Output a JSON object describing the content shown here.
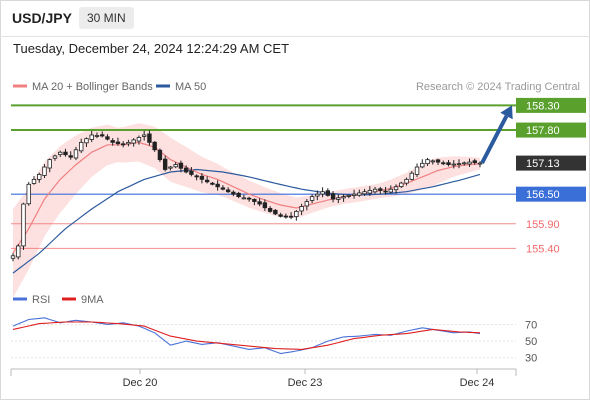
{
  "header": {
    "symbol": "USD/JPY",
    "timeframe": "30 MIN"
  },
  "datetime": "Tuesday, December 24, 2024 12:24:29 AM CET",
  "legend": {
    "ma20": "MA 20 + Bollinger Bands",
    "ma50": "MA 50",
    "credit": "Research © 2024 Trading Central"
  },
  "rsi_legend": {
    "rsi": "RSI",
    "ma9": "9MA"
  },
  "colors": {
    "resistance": "#5aa02c",
    "support": "#3a6fd8",
    "lower": "#f06a6a",
    "price_tag": "#333333",
    "ma20": "#f08080",
    "ma50": "#2c5a9e",
    "arrow": "#2c5a9e",
    "bands": "#fde0e0",
    "rsi": "#4a72d8",
    "rsi_ma": "#e02020"
  },
  "chart_data": [
    {
      "type": "candlestick",
      "title": "USD/JPY",
      "x_labels": [
        "Dec 20",
        "Dec 23",
        "Dec 24"
      ],
      "ylim": [
        154.8,
        158.45
      ],
      "grid": false,
      "legend_placement": "top-left",
      "levels": [
        {
          "name": "resistance",
          "value": 158.3,
          "label": "158.30"
        },
        {
          "name": "resistance",
          "value": 157.8,
          "label": "157.80"
        },
        {
          "name": "last",
          "value": 157.13,
          "label": "157.13"
        },
        {
          "name": "support",
          "value": 156.5,
          "label": "156.50"
        },
        {
          "name": "support",
          "value": 155.9,
          "label": "155.90"
        },
        {
          "name": "support",
          "value": 155.4,
          "label": "155.40"
        }
      ],
      "anchors": [
        [
          0,
          155.25
        ],
        [
          1,
          155.45
        ],
        [
          2,
          156.3
        ],
        [
          3,
          156.7
        ],
        [
          5,
          156.9
        ],
        [
          7,
          157.2
        ],
        [
          9,
          157.35
        ],
        [
          11,
          157.25
        ],
        [
          13,
          157.55
        ],
        [
          15,
          157.7
        ],
        [
          17,
          157.68
        ],
        [
          19,
          157.55
        ],
        [
          21,
          157.5
        ],
        [
          23,
          157.6
        ],
        [
          25,
          157.7
        ],
        [
          27,
          157.4
        ],
        [
          29,
          157.0
        ],
        [
          31,
          157.1
        ],
        [
          33,
          156.95
        ],
        [
          35,
          156.85
        ],
        [
          37,
          156.75
        ],
        [
          39,
          156.65
        ],
        [
          41,
          156.55
        ],
        [
          43,
          156.45
        ],
        [
          45,
          156.4
        ],
        [
          47,
          156.3
        ],
        [
          49,
          156.15
        ],
        [
          51,
          156.05
        ],
        [
          53,
          156.05
        ],
        [
          55,
          156.25
        ],
        [
          57,
          156.45
        ],
        [
          59,
          156.55
        ],
        [
          61,
          156.4
        ],
        [
          63,
          156.45
        ],
        [
          65,
          156.5
        ],
        [
          67,
          156.55
        ],
        [
          69,
          156.6
        ],
        [
          71,
          156.55
        ],
        [
          73,
          156.65
        ],
        [
          75,
          156.8
        ],
        [
          77,
          157.05
        ],
        [
          79,
          157.2
        ],
        [
          81,
          157.15
        ],
        [
          83,
          157.1
        ],
        [
          85,
          157.12
        ],
        [
          87,
          157.15
        ],
        [
          89,
          157.13
        ]
      ],
      "ma20_anchors": [
        [
          0,
          155.3
        ],
        [
          3,
          155.8
        ],
        [
          6,
          156.4
        ],
        [
          9,
          156.8
        ],
        [
          12,
          157.1
        ],
        [
          15,
          157.35
        ],
        [
          18,
          157.5
        ],
        [
          21,
          157.5
        ],
        [
          24,
          157.55
        ],
        [
          27,
          157.45
        ],
        [
          30,
          157.2
        ],
        [
          33,
          157.05
        ],
        [
          36,
          156.9
        ],
        [
          39,
          156.8
        ],
        [
          42,
          156.65
        ],
        [
          45,
          156.5
        ],
        [
          48,
          156.38
        ],
        [
          51,
          156.28
        ],
        [
          54,
          156.22
        ],
        [
          57,
          156.3
        ],
        [
          60,
          156.38
        ],
        [
          63,
          156.45
        ],
        [
          66,
          156.5
        ],
        [
          69,
          156.55
        ],
        [
          72,
          156.62
        ],
        [
          75,
          156.72
        ],
        [
          78,
          156.85
        ],
        [
          81,
          156.98
        ],
        [
          84,
          157.06
        ],
        [
          87,
          157.1
        ],
        [
          89,
          157.12
        ]
      ],
      "ma50_anchors": [
        [
          0,
          154.9
        ],
        [
          5,
          155.3
        ],
        [
          10,
          155.8
        ],
        [
          15,
          156.2
        ],
        [
          20,
          156.55
        ],
        [
          25,
          156.8
        ],
        [
          30,
          156.95
        ],
        [
          35,
          157.0
        ],
        [
          40,
          156.95
        ],
        [
          45,
          156.85
        ],
        [
          50,
          156.72
        ],
        [
          55,
          156.6
        ],
        [
          60,
          156.52
        ],
        [
          65,
          156.48
        ],
        [
          70,
          156.5
        ],
        [
          75,
          156.55
        ],
        [
          80,
          156.65
        ],
        [
          85,
          156.78
        ],
        [
          89,
          156.9
        ]
      ],
      "band_width": [
        [
          0,
          0.9
        ],
        [
          10,
          0.65
        ],
        [
          20,
          0.35
        ],
        [
          30,
          0.45
        ],
        [
          40,
          0.3
        ],
        [
          50,
          0.25
        ],
        [
          60,
          0.15
        ],
        [
          70,
          0.15
        ],
        [
          80,
          0.28
        ],
        [
          89,
          0.12
        ]
      ],
      "projection": {
        "from": 157.13,
        "to": 158.3
      }
    },
    {
      "type": "line",
      "title": "RSI",
      "ylim": [
        20,
        85
      ],
      "y_ticks": [
        70,
        50,
        30
      ],
      "series": [
        {
          "name": "RSI",
          "anchors": [
            [
              0,
              68
            ],
            [
              3,
              76
            ],
            [
              6,
              78
            ],
            [
              9,
              72
            ],
            [
              12,
              75
            ],
            [
              15,
              73
            ],
            [
              18,
              70
            ],
            [
              21,
              72
            ],
            [
              24,
              68
            ],
            [
              27,
              60
            ],
            [
              30,
              45
            ],
            [
              33,
              50
            ],
            [
              36,
              46
            ],
            [
              39,
              48
            ],
            [
              42,
              44
            ],
            [
              45,
              40
            ],
            [
              48,
              42
            ],
            [
              51,
              35
            ],
            [
              54,
              38
            ],
            [
              57,
              42
            ],
            [
              60,
              50
            ],
            [
              63,
              55
            ],
            [
              66,
              56
            ],
            [
              69,
              58
            ],
            [
              72,
              57
            ],
            [
              75,
              62
            ],
            [
              78,
              66
            ],
            [
              81,
              63
            ],
            [
              84,
              60
            ],
            [
              87,
              61
            ],
            [
              89,
              59
            ]
          ]
        },
        {
          "name": "9MA",
          "anchors": [
            [
              0,
              64
            ],
            [
              5,
              71
            ],
            [
              10,
              73
            ],
            [
              15,
              73
            ],
            [
              20,
              71
            ],
            [
              25,
              68
            ],
            [
              30,
              56
            ],
            [
              35,
              50
            ],
            [
              40,
              47
            ],
            [
              45,
              44
            ],
            [
              50,
              41
            ],
            [
              55,
              40
            ],
            [
              60,
              45
            ],
            [
              65,
              53
            ],
            [
              70,
              57
            ],
            [
              75,
              59
            ],
            [
              80,
              64
            ],
            [
              85,
              61
            ],
            [
              89,
              60
            ]
          ]
        }
      ]
    }
  ]
}
